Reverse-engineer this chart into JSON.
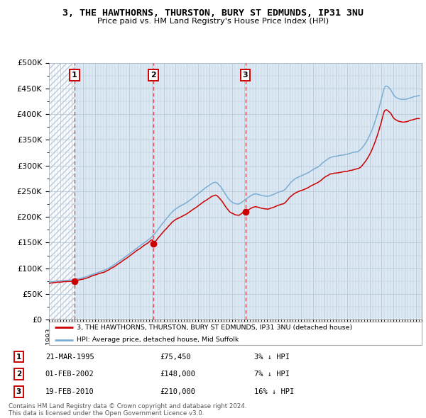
{
  "title": "3, THE HAWTHORNS, THURSTON, BURY ST EDMUNDS, IP31 3NU",
  "subtitle": "Price paid vs. HM Land Registry's House Price Index (HPI)",
  "ylabel_ticks": [
    "£0",
    "£50K",
    "£100K",
    "£150K",
    "£200K",
    "£250K",
    "£300K",
    "£350K",
    "£400K",
    "£450K",
    "£500K"
  ],
  "ylim": [
    0,
    500000
  ],
  "xlim_start": 1993.0,
  "xlim_end": 2025.5,
  "sale_dates": [
    1995.22,
    2002.08,
    2010.12
  ],
  "sale_prices": [
    75450,
    148000,
    210000
  ],
  "sale_labels": [
    "1",
    "2",
    "3"
  ],
  "sale_date_str": [
    "21-MAR-1995",
    "01-FEB-2002",
    "19-FEB-2010"
  ],
  "sale_prices_str": [
    "£75,450",
    "£148,000",
    "£210,000"
  ],
  "sale_discount_str": [
    "3% ↓ HPI",
    "7% ↓ HPI",
    "16% ↓ HPI"
  ],
  "legend_line1": "3, THE HAWTHORNS, THURSTON, BURY ST EDMUNDS, IP31 3NU (detached house)",
  "legend_line2": "HPI: Average price, detached house, Mid Suffolk",
  "footer1": "Contains HM Land Registry data © Crown copyright and database right 2024.",
  "footer2": "This data is licensed under the Open Government Licence v3.0.",
  "bg_color": "#dce9f5",
  "hatch_color": "#b8cce0",
  "grid_color": "#b8c8d8",
  "red_line_color": "#cc0000",
  "blue_line_color": "#7aadd4",
  "sale_marker_color": "#cc0000"
}
